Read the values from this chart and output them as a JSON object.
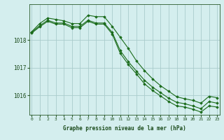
{
  "bg_color": "#d4eeee",
  "grid_color": "#aacccc",
  "line_color": "#1a6b1a",
  "marker_color": "#1a6b1a",
  "xlabel": "Graphe pression niveau de la mer (hPa)",
  "xlabel_color": "#1a4a1a",
  "tick_color": "#1a4a1a",
  "axis_color": "#2a5a2a",
  "hours": [
    0,
    1,
    2,
    3,
    4,
    5,
    6,
    7,
    8,
    9,
    10,
    11,
    12,
    13,
    14,
    15,
    16,
    17,
    18,
    19,
    20,
    21,
    22,
    23
  ],
  "line1": [
    1018.3,
    1018.6,
    1018.8,
    1018.75,
    1018.7,
    1018.6,
    1018.6,
    1018.9,
    1018.85,
    1018.85,
    1018.5,
    1018.1,
    1017.7,
    1017.25,
    1016.9,
    1016.6,
    1016.35,
    1016.15,
    1015.95,
    1015.88,
    1015.82,
    1015.72,
    1015.97,
    1015.92
  ],
  "line2": [
    1018.28,
    1018.52,
    1018.72,
    1018.62,
    1018.62,
    1018.5,
    1018.5,
    1018.72,
    1018.62,
    1018.62,
    1018.28,
    1017.62,
    1017.22,
    1016.88,
    1016.55,
    1016.3,
    1016.1,
    1015.9,
    1015.75,
    1015.7,
    1015.62,
    1015.52,
    1015.78,
    1015.72
  ],
  "line3": [
    1018.25,
    1018.48,
    1018.68,
    1018.58,
    1018.58,
    1018.45,
    1018.45,
    1018.68,
    1018.58,
    1018.58,
    1018.22,
    1017.52,
    1017.12,
    1016.78,
    1016.42,
    1016.18,
    1015.98,
    1015.78,
    1015.62,
    1015.58,
    1015.5,
    1015.4,
    1015.62,
    1015.58
  ],
  "ylim_min": 1015.3,
  "ylim_max": 1019.3,
  "ytick_values": [
    1016,
    1017,
    1018
  ],
  "xlim_min": -0.3,
  "xlim_max": 23.3
}
